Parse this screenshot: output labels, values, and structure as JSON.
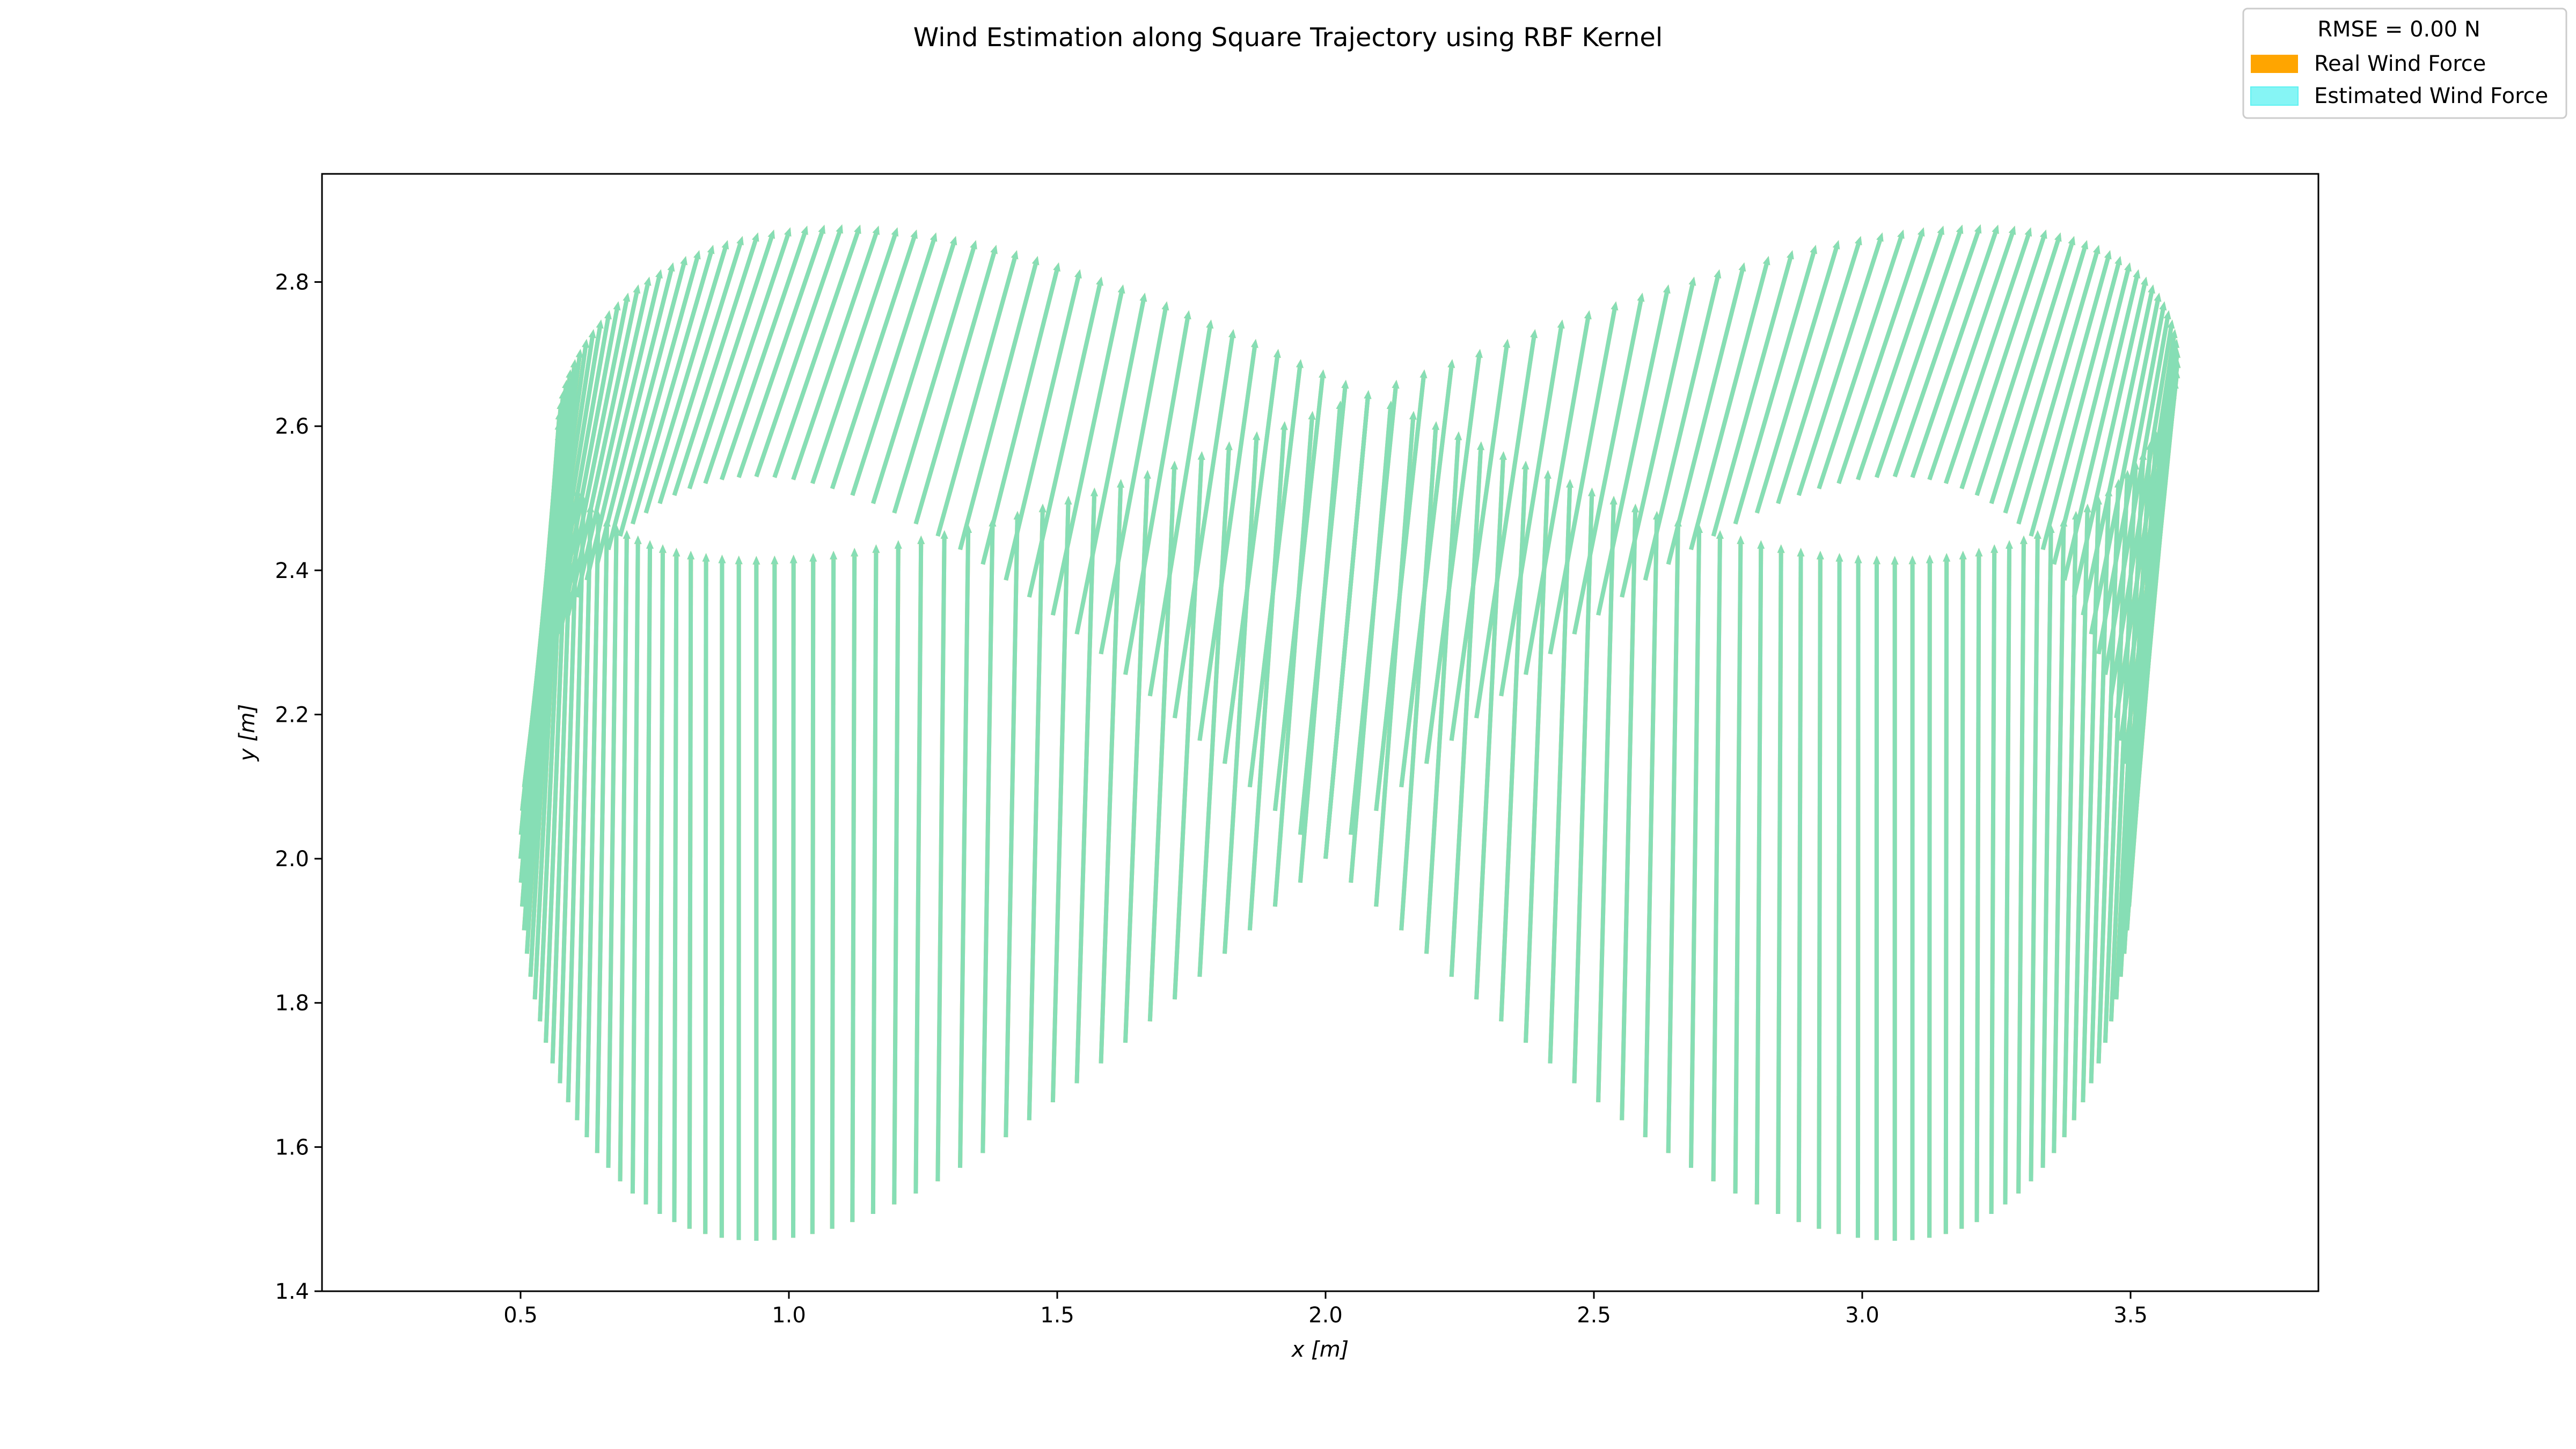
{
  "chart_data": {
    "type": "quiver",
    "title": "Wind Estimation along Square Trajectory using RBF Kernel",
    "xlabel": "x [m]",
    "ylabel": "y [m]",
    "xlim": [
      0.13,
      3.85
    ],
    "ylim": [
      1.4,
      2.95
    ],
    "xticks": [
      0.5,
      1.0,
      1.5,
      2.0,
      2.5,
      3.0,
      3.5
    ],
    "xtick_labels": [
      "0.5",
      "1.0",
      "1.5",
      "2.0",
      "2.5",
      "3.0",
      "3.5"
    ],
    "yticks": [
      1.4,
      1.6,
      1.8,
      2.0,
      2.2,
      2.4,
      2.6,
      2.8
    ],
    "ytick_labels": [
      "1.4",
      "1.6",
      "1.8",
      "2.0",
      "2.2",
      "2.4",
      "2.6",
      "2.8"
    ],
    "grid": false,
    "legend": {
      "placement": "top-right (outside axes)",
      "title": "RMSE = 0.00 N",
      "entries": [
        {
          "label": "Real Wind Force",
          "color": "#ffa500"
        },
        {
          "label": "Estimated Wind Force",
          "color": "#5ef2f2"
        }
      ]
    },
    "trajectory": {
      "shape": "figure-eight (lemniscate)",
      "center": [
        2.0,
        2.0
      ],
      "half_width_x": 1.5,
      "half_height_y": 0.53,
      "num_points": 200,
      "start_point": [
        3.5,
        2.0
      ]
    },
    "wind_field": {
      "description": "vectors drawn from each trajectory point, pointing up-right at roughly the same direction; x component grows with y",
      "u_at_y_1_47": 0.0,
      "u_at_y_2_53": 0.16,
      "v_at_y_1_47": 0.95,
      "v_at_y_2_53": 0.35
    },
    "series": [
      {
        "name": "Real Wind Force",
        "color": "#ffa500"
      },
      {
        "name": "Estimated Wind Force",
        "color": "#5ef2f2"
      }
    ],
    "rmse_N": 0.0
  }
}
